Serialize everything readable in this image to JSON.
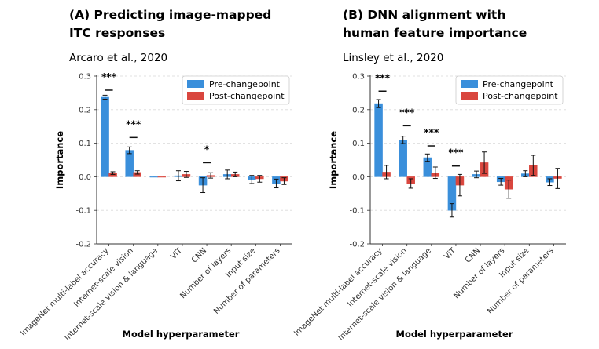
{
  "chart_data": [
    {
      "type": "bar",
      "title": "(A) Predicting image-mapped ITC responses",
      "title_lines": [
        "(A) Predicting image-mapped",
        "ITC responses"
      ],
      "subtitle": "Arcaro et al., 2020",
      "xlabel": "Model hyperparameter",
      "ylabel": "Importance",
      "ylim": [
        -0.2,
        0.3
      ],
      "yticks": [
        -0.2,
        -0.1,
        0.0,
        0.1,
        0.2,
        0.3
      ],
      "ytick_labels": [
        "-0.2",
        "-0.1",
        "0.0",
        "0.1",
        "0.2",
        "0.3"
      ],
      "grid": true,
      "legend_position": "top-right",
      "categories": [
        "ImageNet multi-label accuracy",
        "Internet-scale vision",
        "Internet-scale vision & language",
        "ViT",
        "CNN",
        "Number of layers",
        "Input size",
        "Number of parameters"
      ],
      "series": [
        {
          "name": "Pre-changepoint",
          "color": "#3a8fdb",
          "values": [
            0.237,
            0.079,
            0.0,
            0.003,
            -0.025,
            0.007,
            -0.008,
            -0.02
          ],
          "errors": [
            0.006,
            0.01,
            0.0,
            0.015,
            0.022,
            0.013,
            0.012,
            0.013
          ]
        },
        {
          "name": "Post-changepoint",
          "color": "#d9463e",
          "values": [
            0.011,
            0.013,
            0.0,
            0.007,
            0.004,
            0.007,
            -0.006,
            -0.013
          ],
          "errors": [
            0.004,
            0.005,
            0.0,
            0.009,
            0.008,
            0.007,
            0.01,
            0.01
          ]
        }
      ],
      "annotations": [
        {
          "category": "ImageNet multi-label accuracy",
          "text": "***",
          "bar_y": 0.258
        },
        {
          "category": "Internet-scale vision",
          "text": "***",
          "bar_y": 0.117
        },
        {
          "category": "CNN",
          "text": "*",
          "bar_y": 0.042
        }
      ]
    },
    {
      "type": "bar",
      "title": "(B) DNN alignment with human feature importance",
      "title_lines": [
        "(B) DNN alignment with",
        "human feature importance"
      ],
      "subtitle": "Linsley et al., 2020",
      "xlabel": "Model hyperparameter",
      "ylabel": "Importance",
      "ylim": [
        -0.2,
        0.3
      ],
      "yticks": [
        -0.2,
        -0.1,
        0.0,
        0.1,
        0.2,
        0.3
      ],
      "ytick_labels": [
        "-0.2",
        "-0.1",
        "0.0",
        "0.1",
        "0.2",
        "0.3"
      ],
      "grid": true,
      "legend_position": "top-right",
      "categories": [
        "ImageNet multi-label accuracy",
        "Internet-scale vision",
        "Internet-scale vision & language",
        "ViT",
        "CNN",
        "Number of layers",
        "Input size",
        "Number of parameters"
      ],
      "series": [
        {
          "name": "Pre-changepoint",
          "color": "#3a8fdb",
          "values": [
            0.218,
            0.11,
            0.057,
            -0.1,
            0.007,
            -0.015,
            0.009,
            -0.016
          ],
          "errors": [
            0.012,
            0.011,
            0.011,
            0.02,
            0.01,
            0.01,
            0.009,
            0.01
          ]
        },
        {
          "name": "Post-changepoint",
          "color": "#d9463e",
          "values": [
            0.014,
            -0.02,
            0.012,
            -0.025,
            0.042,
            -0.037,
            0.034,
            -0.005
          ],
          "errors": [
            0.02,
            0.014,
            0.017,
            0.032,
            0.032,
            0.027,
            0.03,
            0.03
          ]
        }
      ],
      "annotations": [
        {
          "category": "ImageNet multi-label accuracy",
          "text": "***",
          "bar_y": 0.255
        },
        {
          "category": "Internet-scale vision",
          "text": "***",
          "bar_y": 0.152
        },
        {
          "category": "Internet-scale vision & language",
          "text": "***",
          "bar_y": 0.092
        },
        {
          "category": "ViT",
          "text": "***",
          "bar_y": 0.032
        }
      ]
    }
  ]
}
